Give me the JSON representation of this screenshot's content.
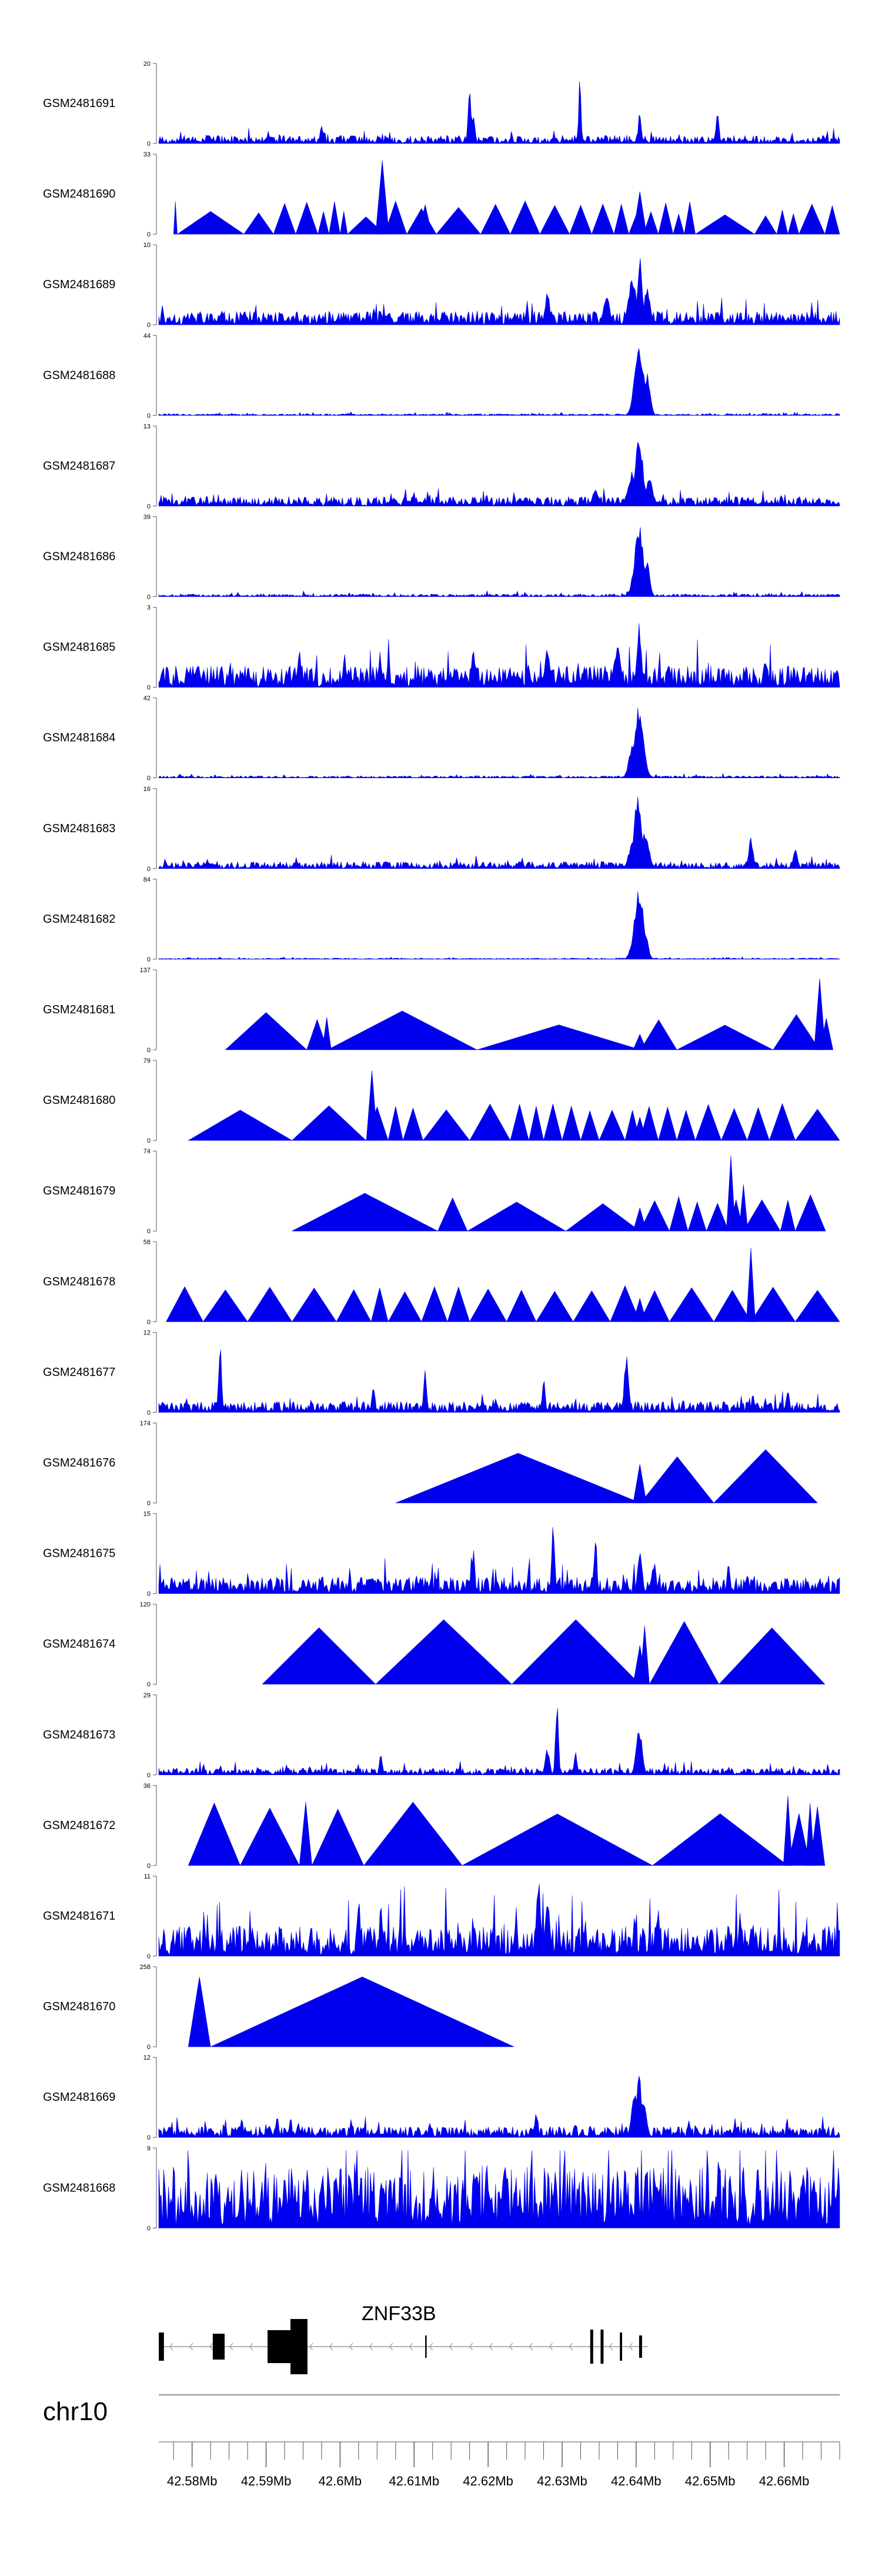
{
  "chart_data": {
    "type": "area",
    "title": "",
    "chromosome": "chr10",
    "x_axis": {
      "ticks": [
        42.58,
        42.59,
        42.6,
        42.61,
        42.62,
        42.63,
        42.64,
        42.65,
        42.66
      ],
      "tick_labels": [
        "42.58Mb",
        "42.59Mb",
        "42.6Mb",
        "42.61Mb",
        "42.62Mb",
        "42.63Mb",
        "42.64Mb",
        "42.65Mb",
        "42.66Mb"
      ],
      "range": [
        42.5755,
        42.6675
      ]
    },
    "gene": {
      "name": "ZNF33B",
      "strand": "-",
      "range": [
        42.5755,
        42.6416
      ],
      "exons": [
        [
          42.5755,
          42.5762
        ],
        [
          42.5828,
          42.5844
        ],
        [
          42.5902,
          42.5933
        ],
        [
          42.5933,
          42.5956
        ],
        [
          42.6115,
          42.6117
        ],
        [
          42.6338,
          42.6342
        ],
        [
          42.6352,
          42.6356
        ],
        [
          42.6378,
          42.6381
        ],
        [
          42.6404,
          42.6408
        ]
      ]
    },
    "series": [
      {
        "name": "GSM2481691",
        "ymax": 20,
        "style": "noise",
        "base": 0.06,
        "var": 0.5,
        "peaks": [
          [
            42.6175,
            0.7,
            0.0002
          ],
          [
            42.6324,
            0.95,
            0.00015
          ],
          [
            42.618,
            0.45,
            0.0002
          ],
          [
            42.6405,
            0.45,
            0.0002
          ],
          [
            42.651,
            0.4,
            0.0002
          ],
          [
            42.5975,
            0.25,
            0.0002
          ]
        ]
      },
      {
        "name": "GSM2481690",
        "ymax": 33,
        "style": "tri",
        "hmin": 0.22,
        "hmax": 0.45,
        "break": [
          42.578,
          42.587,
          42.591,
          42.594,
          42.597,
          42.5985,
          42.6,
          42.601,
          42.606,
          42.609,
          42.613,
          42.619,
          42.623,
          42.627,
          42.631,
          42.634,
          42.637,
          42.639,
          42.641,
          42.643,
          42.645,
          42.6465,
          42.648,
          42.656,
          42.659,
          42.6605,
          42.662,
          42.6655
        ],
        "peaks": [
          [
            42.6057,
            0.95,
            0.0003
          ],
          [
            42.6405,
            0.55,
            0.0003
          ],
          [
            42.6115,
            0.38,
            0.0003
          ]
        ]
      },
      {
        "name": "GSM2481689",
        "ymax": 10,
        "style": "noise",
        "base": 0.1,
        "var": 0.5,
        "peaks": [
          [
            42.6405,
            0.95,
            0.0003
          ],
          [
            42.6395,
            0.65,
            0.0005
          ],
          [
            42.6415,
            0.5,
            0.0004
          ],
          [
            42.628,
            0.45,
            0.0003
          ],
          [
            42.636,
            0.4,
            0.0004
          ]
        ]
      },
      {
        "name": "GSM2481688",
        "ymax": 44,
        "style": "noise",
        "base": 0.012,
        "var": 0.6,
        "peaks": [
          [
            42.6404,
            0.95,
            0.0006
          ],
          [
            42.6415,
            0.55,
            0.0004
          ]
        ]
      },
      {
        "name": "GSM2481687",
        "ymax": 13,
        "style": "noise",
        "base": 0.07,
        "var": 0.5,
        "peaks": [
          [
            42.6404,
            0.95,
            0.0005
          ],
          [
            42.6395,
            0.45,
            0.0006
          ],
          [
            42.6418,
            0.4,
            0.0004
          ],
          [
            42.6345,
            0.22,
            0.0004
          ]
        ]
      },
      {
        "name": "GSM2481686",
        "ymax": 39,
        "style": "noise",
        "base": 0.02,
        "var": 0.6,
        "peaks": [
          [
            42.6404,
            0.95,
            0.0006
          ],
          [
            42.6414,
            0.5,
            0.0004
          ]
        ]
      },
      {
        "name": "GSM2481685",
        "ymax": 3,
        "style": "noise",
        "base": 0.16,
        "var": 0.8,
        "peaks": [
          [
            42.6404,
            0.85,
            0.0003
          ],
          [
            42.6375,
            0.6,
            0.0004
          ],
          [
            42.618,
            0.5,
            0.0003
          ],
          [
            42.628,
            0.55,
            0.0003
          ],
          [
            42.5945,
            0.45,
            0.0003
          ],
          [
            42.6575,
            0.4,
            0.0003
          ]
        ]
      },
      {
        "name": "GSM2481684",
        "ymax": 42,
        "style": "noise",
        "base": 0.015,
        "var": 0.6,
        "peaks": [
          [
            42.6404,
            0.95,
            0.0006
          ],
          [
            42.6396,
            0.5,
            0.0005
          ]
        ]
      },
      {
        "name": "GSM2481683",
        "ymax": 16,
        "style": "noise",
        "base": 0.05,
        "var": 0.5,
        "peaks": [
          [
            42.6402,
            0.95,
            0.0005
          ],
          [
            42.6412,
            0.5,
            0.0005
          ],
          [
            42.6395,
            0.35,
            0.0005
          ],
          [
            42.6555,
            0.4,
            0.0003
          ],
          [
            42.6615,
            0.25,
            0.0003
          ]
        ]
      },
      {
        "name": "GSM2481682",
        "ymax": 84,
        "style": "noise",
        "base": 0.008,
        "var": 0.6,
        "peaks": [
          [
            42.6404,
            0.95,
            0.0006
          ],
          [
            42.6412,
            0.35,
            0.0004
          ],
          [
            42.6395,
            0.2,
            0.0004
          ]
        ]
      },
      {
        "name": "GSM2481681",
        "ymax": 137,
        "style": "tri",
        "hmin": 0.3,
        "hmax": 0.5,
        "start": 42.5845,
        "end": 42.6666,
        "break": [
          42.5955,
          42.5983,
          42.6185,
          42.6406,
          42.6455,
          42.6585,
          42.6648
        ],
        "peaks": [
          [
            42.6648,
            0.92,
            0.00025
          ],
          [
            42.5982,
            0.42,
            0.0002
          ],
          [
            42.6405,
            0.2,
            0.0003
          ]
        ]
      },
      {
        "name": "GSM2481680",
        "ymax": 79,
        "style": "tri",
        "hmin": 0.38,
        "hmax": 0.48,
        "start": 42.5795,
        "break": [
          42.5935,
          42.6035,
          42.6065,
          42.6085,
          42.6112,
          42.6175,
          42.623,
          42.6255,
          42.6275,
          42.63,
          42.6325,
          42.635,
          42.6385,
          42.6405,
          42.643,
          42.6455,
          42.648,
          42.6515,
          42.655,
          42.658,
          42.6615
        ],
        "peaks": [
          [
            42.6043,
            0.9,
            0.00025
          ],
          [
            42.6405,
            0.3,
            0.0003
          ]
        ]
      },
      {
        "name": "GSM2481679",
        "ymax": 74,
        "style": "tri",
        "hmin": 0.35,
        "hmax": 0.5,
        "start": 42.5935,
        "end": 42.6656,
        "break": [
          42.6132,
          42.6172,
          42.6305,
          42.6405,
          42.6445,
          42.647,
          42.6495,
          42.6525,
          42.6545,
          42.6595,
          42.6615
        ],
        "peaks": [
          [
            42.6528,
            0.97,
            0.0002
          ],
          [
            42.6545,
            0.6,
            0.0002
          ],
          [
            42.6405,
            0.3,
            0.0003
          ]
        ]
      },
      {
        "name": "GSM2481678",
        "ymax": 58,
        "style": "tri",
        "hmin": 0.38,
        "hmax": 0.48,
        "start": 42.5765,
        "break": [
          42.5815,
          42.5875,
          42.5935,
          42.5995,
          42.6042,
          42.6065,
          42.611,
          42.6145,
          42.6175,
          42.6225,
          42.6265,
          42.6315,
          42.6365,
          42.6405,
          42.6445,
          42.6505,
          42.6555,
          42.6615
        ],
        "peaks": [
          [
            42.6555,
            0.95,
            0.0002
          ],
          [
            42.6405,
            0.3,
            0.0003
          ]
        ]
      },
      {
        "name": "GSM2481677",
        "ymax": 12,
        "style": "noise",
        "base": 0.08,
        "var": 0.5,
        "peaks": [
          [
            42.5838,
            0.9,
            0.0002
          ],
          [
            42.6387,
            0.75,
            0.0003
          ],
          [
            42.6115,
            0.6,
            0.0002
          ],
          [
            42.6275,
            0.45,
            0.0002
          ],
          [
            42.6045,
            0.4,
            0.0002
          ],
          [
            42.6605,
            0.35,
            0.0002
          ]
        ]
      },
      {
        "name": "GSM2481676",
        "ymax": 174,
        "style": "tri",
        "hmin": 0.55,
        "hmax": 0.7,
        "start": 42.6075,
        "end": 42.6645,
        "break": [
          42.6406,
          42.6505
        ],
        "peaks": [
          [
            42.6405,
            0.5,
            0.0003
          ]
        ]
      },
      {
        "name": "GSM2481675",
        "ymax": 15,
        "style": "noise",
        "base": 0.12,
        "var": 0.6,
        "peaks": [
          [
            42.6288,
            0.95,
            0.0002
          ],
          [
            42.6345,
            0.8,
            0.0002
          ],
          [
            42.618,
            0.6,
            0.0002
          ],
          [
            42.6405,
            0.55,
            0.0003
          ],
          [
            42.6425,
            0.5,
            0.0002
          ],
          [
            42.6525,
            0.45,
            0.0002
          ]
        ]
      },
      {
        "name": "GSM2481674",
        "ymax": 120,
        "style": "tri",
        "hmin": 0.7,
        "hmax": 0.85,
        "start": 42.5895,
        "end": 42.6655,
        "break": [
          42.6048,
          42.6232,
          42.6405,
          42.6418,
          42.6512
        ],
        "peaks": [
          [
            42.6405,
            0.5,
            0.0003
          ]
        ]
      },
      {
        "name": "GSM2481673",
        "ymax": 29,
        "style": "noise",
        "base": 0.05,
        "var": 0.6,
        "peaks": [
          [
            42.6293,
            0.95,
            0.0002
          ],
          [
            42.6404,
            0.65,
            0.0004
          ],
          [
            42.628,
            0.35,
            0.0003
          ],
          [
            42.6055,
            0.3,
            0.0002
          ],
          [
            42.6318,
            0.3,
            0.0002
          ]
        ]
      },
      {
        "name": "GSM2481672",
        "ymax": 36,
        "style": "tri",
        "hmin": 0.65,
        "hmax": 0.85,
        "start": 42.5795,
        "end": 42.6655,
        "break": [
          42.5865,
          42.5945,
          42.5962,
          42.6032,
          42.6165,
          42.6422,
          42.6605,
          42.6635
        ],
        "peaks": [
          [
            42.6605,
            0.9,
            0.0002
          ],
          [
            42.6635,
            0.8,
            0.0002
          ]
        ]
      },
      {
        "name": "GSM2481671",
        "ymax": 11,
        "style": "noise",
        "base": 0.22,
        "var": 0.7,
        "peaks": [
          [
            42.6268,
            0.95,
            0.0003
          ],
          [
            42.628,
            0.8,
            0.0003
          ],
          [
            42.6025,
            0.8,
            0.0002
          ],
          [
            42.6055,
            0.7,
            0.0002
          ],
          [
            42.6398,
            0.6,
            0.0002
          ],
          [
            42.643,
            0.6,
            0.0002
          ],
          [
            42.6525,
            0.5,
            0.0002
          ]
        ]
      },
      {
        "name": "GSM2481670",
        "ymax": 258,
        "style": "tri",
        "hmin": 0.9,
        "hmax": 0.9,
        "start": 42.5795,
        "end": 42.6235,
        "break": [
          42.5825
        ],
        "peaks": []
      },
      {
        "name": "GSM2481669",
        "ymax": 12,
        "style": "noise",
        "base": 0.08,
        "var": 0.5,
        "peaks": [
          [
            42.6404,
            0.95,
            0.0003
          ],
          [
            42.6398,
            0.6,
            0.0004
          ],
          [
            42.641,
            0.45,
            0.0004
          ],
          [
            42.5915,
            0.3,
            0.0002
          ],
          [
            42.6265,
            0.35,
            0.0002
          ]
        ]
      },
      {
        "name": "GSM2481668",
        "ymax": 9,
        "style": "noise",
        "base": 0.45,
        "var": 0.7,
        "peaks": [
          [
            42.6198,
            0.95,
            0.0002
          ],
          [
            42.6385,
            0.8,
            0.0002
          ],
          [
            42.6068,
            0.75,
            0.0002
          ],
          [
            42.5985,
            0.7,
            0.0002
          ],
          [
            42.6565,
            0.7,
            0.0002
          ],
          [
            42.6055,
            0.65,
            0.0002
          ]
        ]
      }
    ]
  },
  "colors": {
    "fill": "#0000ee",
    "axis": "#555555",
    "text": "#000000",
    "gene": "#000000",
    "gene_intron": "#9a9a9a"
  }
}
